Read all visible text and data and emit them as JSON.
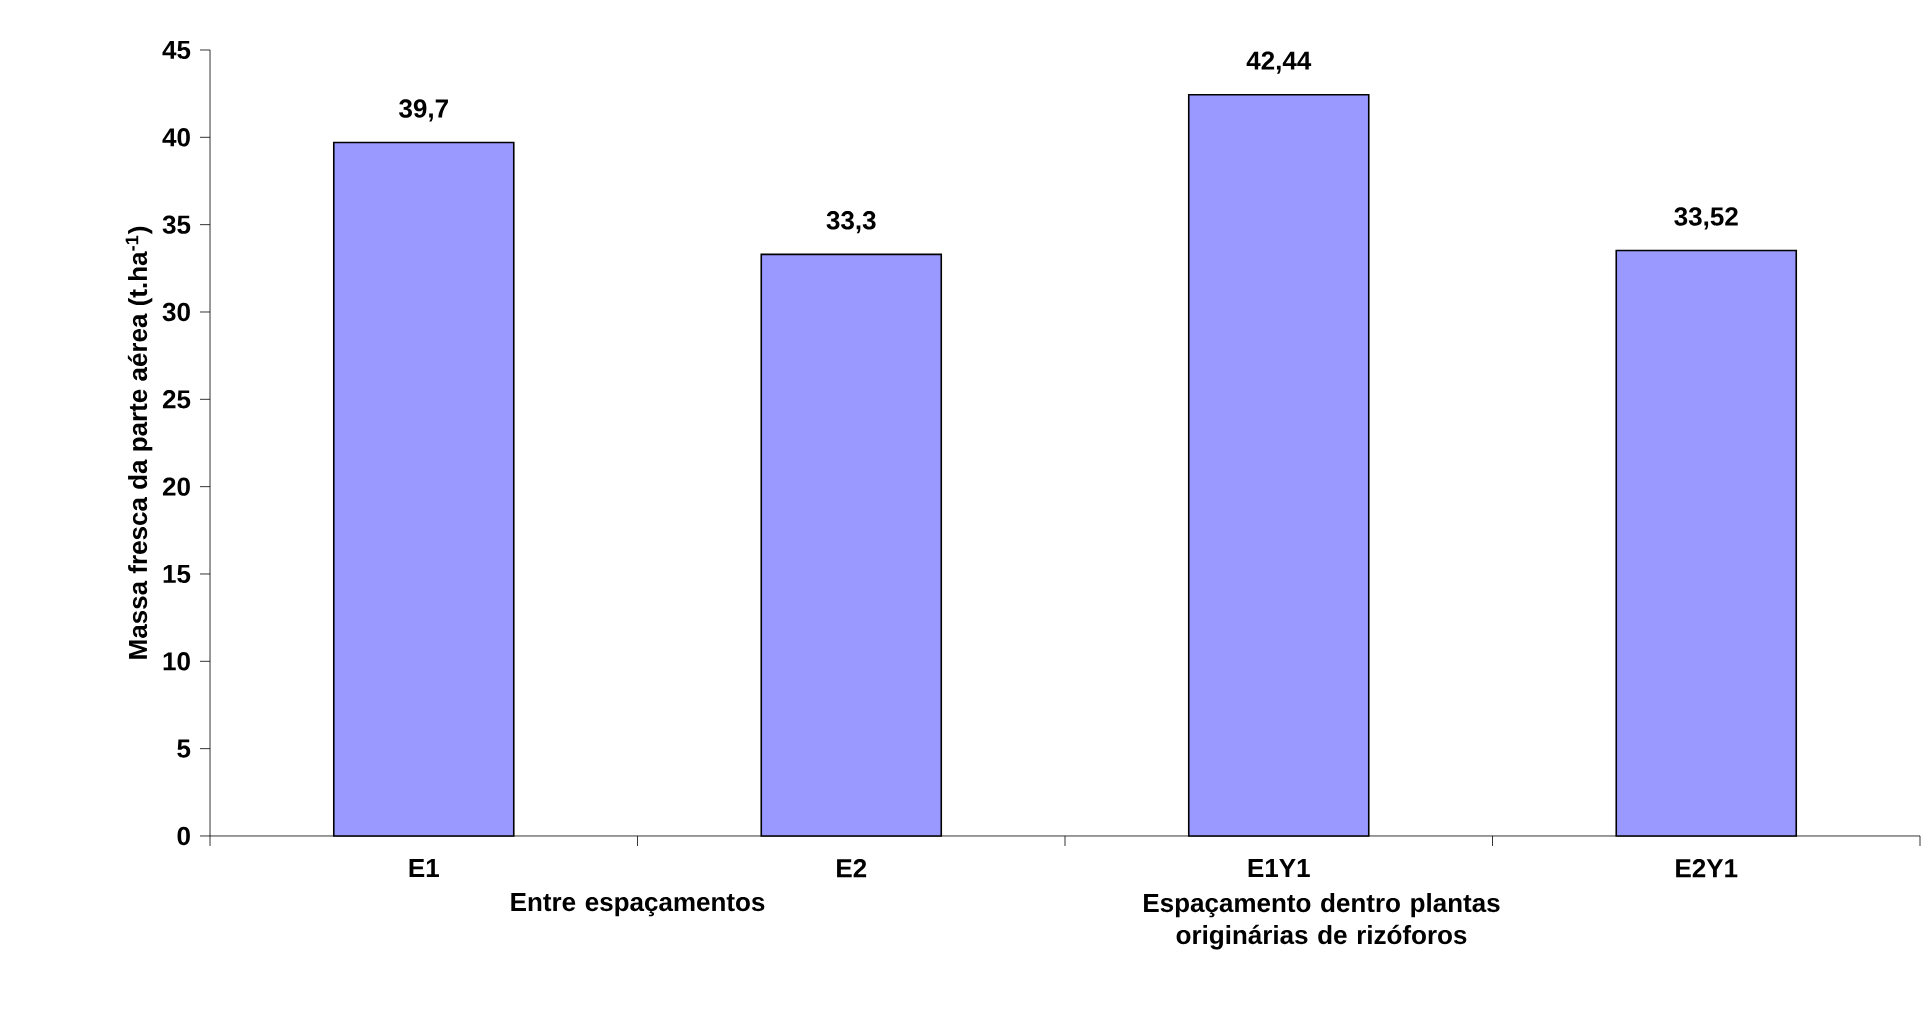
{
  "chart_data": {
    "type": "bar",
    "ylabel": "Massa fresca da parte aérea (t.ha$^{-1}$)",
    "categories": [
      "E1",
      "E2",
      "E1Y1",
      "E2Y1"
    ],
    "values": [
      39.7,
      33.3,
      42.44,
      33.52
    ],
    "value_labels": [
      "39,7",
      "33,3",
      "42,44",
      "33,52"
    ],
    "color": "#9999ff",
    "ylim": [
      0,
      45
    ],
    "yticks": [
      0,
      5,
      10,
      15,
      20,
      25,
      30,
      35,
      40,
      45
    ],
    "annotations": [
      "Entre espaçamentos",
      "Espaçamento dentro plantas originárias de rizóforos"
    ]
  }
}
